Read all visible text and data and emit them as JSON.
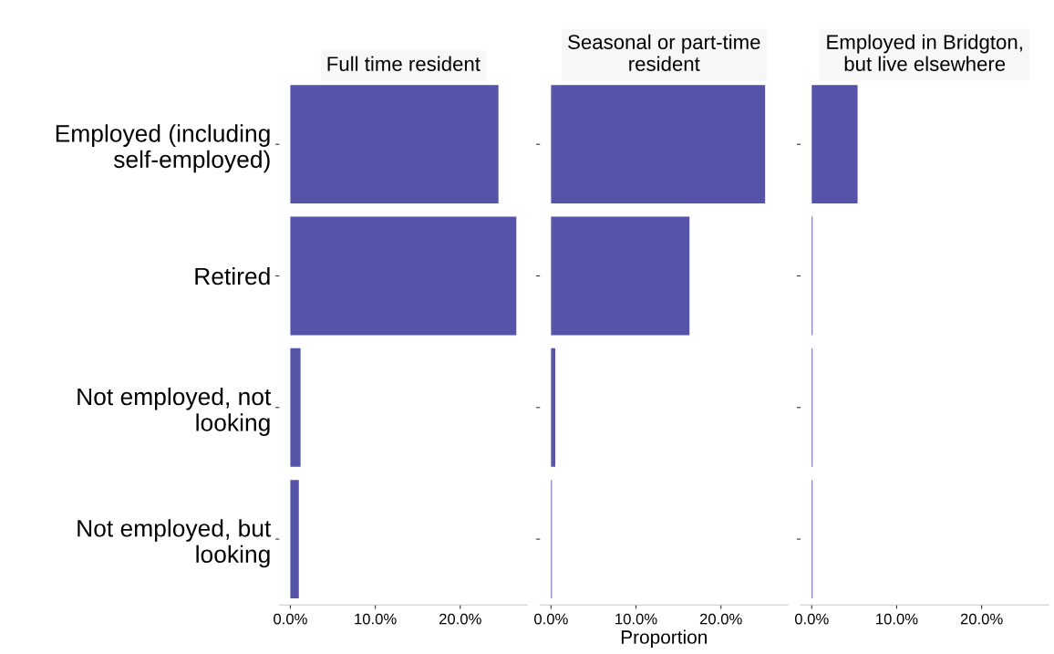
{
  "chart_data": [
    {
      "type": "bar",
      "orientation": "horizontal",
      "title": "Full time resident",
      "categories": [
        "Employed (including self-employed)",
        "Retired",
        "Not employed, not looking",
        "Not employed, but looking"
      ],
      "values": [
        24.5,
        26.6,
        1.2,
        1.0
      ],
      "color": "#5654a8",
      "xlim": [
        -1.3,
        27.9
      ],
      "xticks": [
        {
          "value": 0,
          "label": "0.0%"
        },
        {
          "value": 10,
          "label": "10.0%"
        },
        {
          "value": 20,
          "label": "20.0%"
        }
      ],
      "grid": false
    },
    {
      "type": "bar",
      "orientation": "horizontal",
      "title": "Seasonal or part-time resident",
      "xlabel": "Proportion",
      "categories": [
        null,
        null,
        null,
        null
      ],
      "values": [
        25.2,
        16.3,
        0.5,
        0.1
      ],
      "color": "#5654a8",
      "xlim": [
        -1.3,
        27.9
      ],
      "xticks": [
        {
          "value": 0,
          "label": "0.0%"
        },
        {
          "value": 10,
          "label": "10.0%"
        },
        {
          "value": 20,
          "label": "20.0%"
        }
      ],
      "grid": false,
      "tick_labels": "x"
    },
    {
      "type": "bar",
      "orientation": "horizontal",
      "title": "Employed in Bridgton, but live elsewhere",
      "categories": [
        null,
        null,
        null,
        null
      ],
      "values": [
        5.4,
        0.1,
        0.1,
        0.1
      ],
      "color": "#5654a8",
      "xlim": [
        -1.3,
        27.9
      ],
      "xticks": [
        {
          "value": 0,
          "label": "0.0%"
        },
        {
          "value": 10,
          "label": "10.0%"
        },
        {
          "value": 20,
          "label": "20.0%"
        }
      ],
      "grid": false,
      "tick_labels": "x"
    }
  ]
}
